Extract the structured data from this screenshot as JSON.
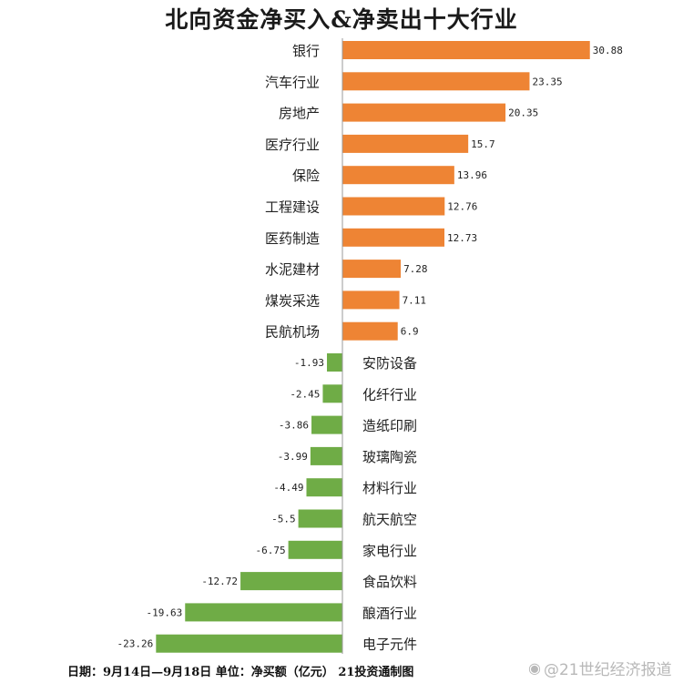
{
  "chart_data": {
    "type": "bar",
    "orientation": "horizontal",
    "title": "北向资金净买入&净卖出十大行业",
    "categories": [
      "银行",
      "汽车行业",
      "房地产",
      "医疗行业",
      "保险",
      "工程建设",
      "医药制造",
      "水泥建材",
      "煤炭采选",
      "民航机场",
      "安防设备",
      "化纤行业",
      "造纸印刷",
      "玻璃陶瓷",
      "材料行业",
      "航天航空",
      "家电行业",
      "食品饮料",
      "酿酒行业",
      "电子元件"
    ],
    "values": [
      30.88,
      23.35,
      20.35,
      15.7,
      13.96,
      12.76,
      12.73,
      7.28,
      7.11,
      6.9,
      -1.93,
      -2.45,
      -3.86,
      -3.99,
      -4.49,
      -5.5,
      -6.75,
      -12.72,
      -19.63,
      -23.26
    ],
    "value_labels": [
      "30.88",
      "23.35",
      "20.35",
      "15.7",
      "13.96",
      "12.76",
      "12.73",
      "7.28",
      "7.11",
      "6.9",
      "-1.93",
      "-2.45",
      "-3.86",
      "-3.99",
      "-4.49",
      "-5.5",
      "-6.75",
      "-12.72",
      "-19.63",
      "-23.26"
    ],
    "positive_color": "#ee8434",
    "negative_color": "#6fac46",
    "xlim": [
      -23.26,
      30.88
    ],
    "grid": false,
    "legend": "none"
  },
  "footer": {
    "note": "日期：9月14日—9月18日 单位：净买额（亿元） 21投资通制图"
  },
  "watermark": {
    "icon": "weibo-icon",
    "text": "@21世纪经济报道"
  }
}
